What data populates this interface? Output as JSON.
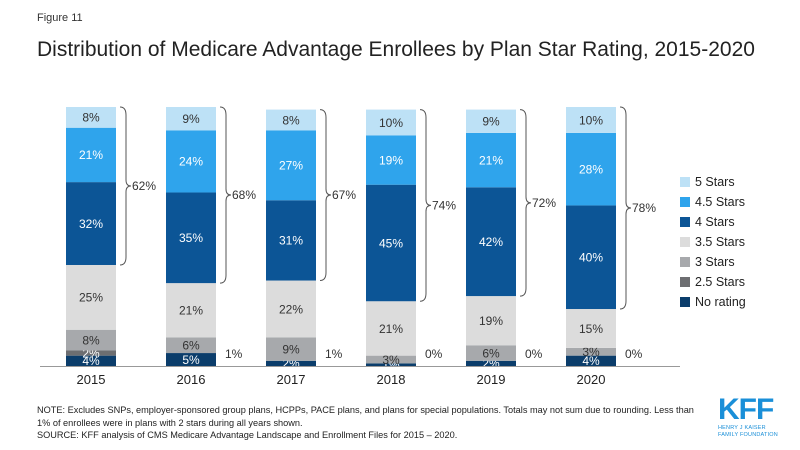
{
  "figure_label": "Figure 11",
  "title": "Distribution of Medicare Advantage Enrollees by Plan Star Rating, 2015-2020",
  "note": "NOTE: Excludes SNPs, employer-sponsored group plans, HCPPs, PACE plans, and plans for special populations. Totals may not sum due to rounding. Less than 1% of enrollees were in plans with 2 stars during all years shown.",
  "source": "SOURCE: KFF analysis of CMS Medicare Advantage Landscape and Enrollment Files for 2015 – 2020.",
  "logo": {
    "mark": "KFF",
    "line1": "HENRY J KAISER",
    "line2": "FAMILY FOUNDATION"
  },
  "chart_data": {
    "type": "bar",
    "stacked": true,
    "categories": [
      "2015",
      "2016",
      "2017",
      "2018",
      "2019",
      "2020"
    ],
    "series": [
      {
        "name": "No rating",
        "color": "#0b3d6b",
        "values": [
          4,
          5,
          2,
          1,
          2,
          4
        ],
        "labels": [
          "4%",
          "5%",
          "2%",
          "1%",
          "2%",
          "4%"
        ]
      },
      {
        "name": "2.5 Stars",
        "color": "#6d6e71",
        "values": [
          2,
          0,
          0,
          0,
          0,
          0
        ],
        "labels": [
          "2%",
          "",
          "",
          "",
          "",
          ""
        ]
      },
      {
        "name": "3 Stars",
        "color": "#a7a9ac",
        "values": [
          8,
          6,
          9,
          3,
          6,
          3
        ],
        "labels": [
          "8%",
          "6%",
          "9%",
          "3%",
          "6%",
          "3%"
        ]
      },
      {
        "name": "3.5 Stars",
        "color": "#dcdcdc",
        "values": [
          25,
          21,
          22,
          21,
          19,
          15
        ],
        "labels": [
          "25%",
          "21%",
          "22%",
          "21%",
          "19%",
          "15%"
        ]
      },
      {
        "name": "4 Stars",
        "color": "#0c5596",
        "values": [
          32,
          35,
          31,
          45,
          42,
          40
        ],
        "labels": [
          "32%",
          "35%",
          "31%",
          "45%",
          "42%",
          "40%"
        ]
      },
      {
        "name": "4.5 Stars",
        "color": "#2fa4ec",
        "values": [
          21,
          24,
          27,
          19,
          21,
          28
        ],
        "labels": [
          "21%",
          "24%",
          "27%",
          "19%",
          "21%",
          "28%"
        ]
      },
      {
        "name": "5 Stars",
        "color": "#bde1f6",
        "values": [
          8,
          9,
          8,
          10,
          9,
          10
        ],
        "labels": [
          "8%",
          "9%",
          "8%",
          "10%",
          "9%",
          "10%"
        ]
      }
    ],
    "bracket_labels": [
      "62%",
      "68%",
      "67%",
      "74%",
      "72%",
      "78%"
    ],
    "side_labels": [
      "",
      "1%",
      "1%",
      "0%",
      "0%",
      "0%"
    ],
    "legend_order": [
      "5 Stars",
      "4.5 Stars",
      "4 Stars",
      "3.5 Stars",
      "3 Stars",
      "2.5 Stars",
      "No rating"
    ],
    "legend_position": "right",
    "ylim": [
      0,
      100
    ],
    "grid": false
  }
}
